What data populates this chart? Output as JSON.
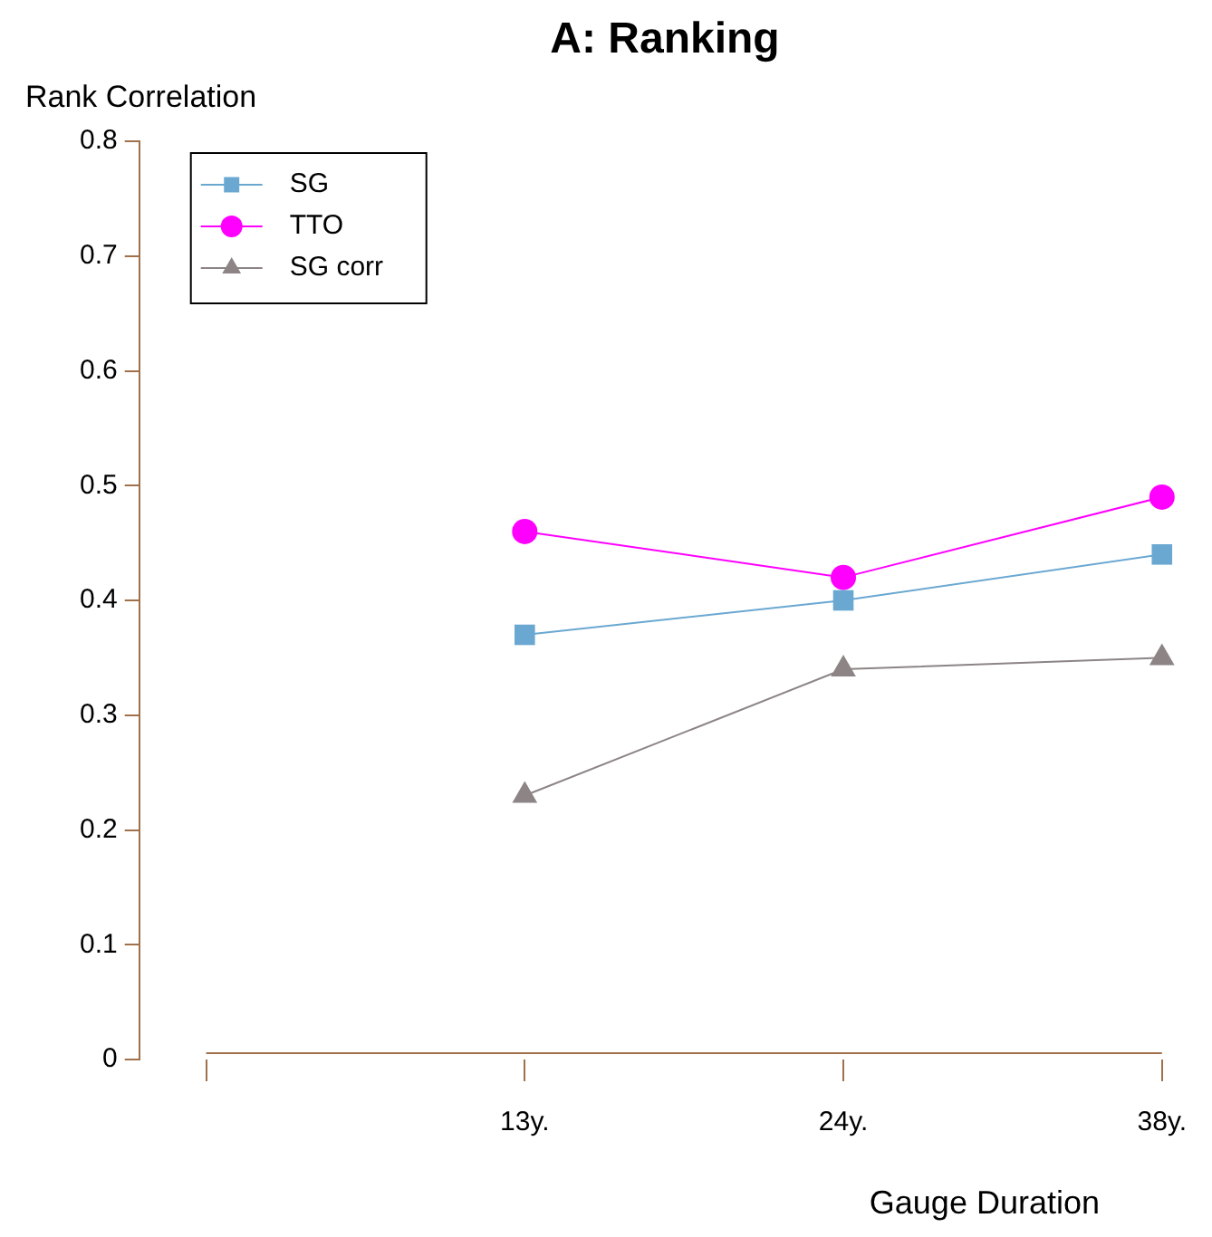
{
  "chart_data": {
    "type": "line",
    "title": "A: Ranking",
    "xlabel": "Gauge Duration",
    "ylabel": "Rank Correlation",
    "categories": [
      null,
      "13y.",
      "24y.",
      "38y."
    ],
    "series": [
      {
        "name": "SG",
        "color": "#6aa8d2",
        "marker": "square",
        "values": [
          null,
          0.37,
          0.4,
          0.44
        ]
      },
      {
        "name": "TTO",
        "color": "#ff00ff",
        "marker": "circle",
        "values": [
          null,
          0.46,
          0.42,
          0.49
        ]
      },
      {
        "name": "SG corr",
        "color": "#8c8485",
        "marker": "triangle",
        "values": [
          null,
          0.23,
          0.34,
          0.35
        ]
      }
    ],
    "ylim": [
      0,
      0.8
    ],
    "yticks": [
      0,
      0.1,
      0.2,
      0.3,
      0.4,
      0.5,
      0.6,
      0.7,
      0.8
    ],
    "grid": false,
    "legend": "top left",
    "line_style": "solid"
  }
}
